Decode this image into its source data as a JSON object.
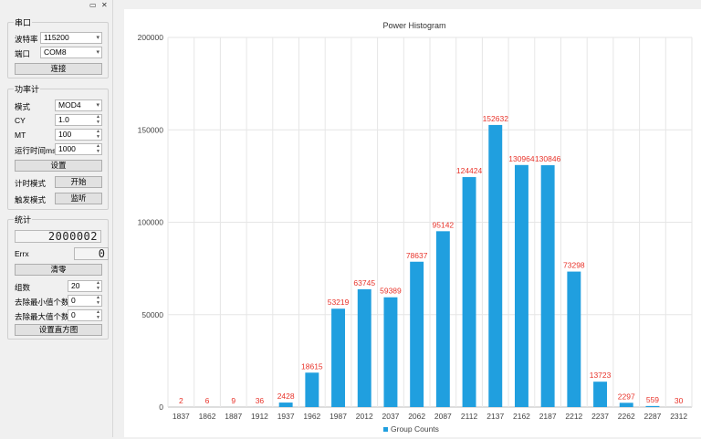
{
  "sidebar": {
    "serial": {
      "title": "串口",
      "baud_label": "波特率",
      "baud_value": "115200",
      "port_label": "端口",
      "port_value": "COM8",
      "connect_label": "连接"
    },
    "power": {
      "title": "功率计",
      "mode_label": "模式",
      "mode_value": "MOD4",
      "cy_label": "CY",
      "cy_value": "1.0",
      "mt_label": "MT",
      "mt_value": "100",
      "runtime_label": "运行时间ms",
      "runtime_value": "1000",
      "set_label": "设置",
      "timer_label": "计时模式",
      "start_label": "开始",
      "trigger_label": "触发模式",
      "listen_label": "监听"
    },
    "stats": {
      "title": "统计",
      "total_display": "2000002",
      "errx_label": "Errx",
      "errx_display": "0",
      "clear_label": "清零",
      "groups_label": "组数",
      "groups_value": "20",
      "rm_min_label": "去除最小值个数",
      "rm_min_value": "0",
      "rm_max_label": "去除最大值个数",
      "rm_max_value": "0",
      "set_hist_label": "设置直方图"
    }
  },
  "chart_data": {
    "type": "bar",
    "title": "Power Histogram",
    "categories": [
      "1837",
      "1862",
      "1887",
      "1912",
      "1937",
      "1962",
      "1987",
      "2012",
      "2037",
      "2062",
      "2087",
      "2112",
      "2137",
      "2162",
      "2187",
      "2212",
      "2237",
      "2262",
      "2287",
      "2312"
    ],
    "series": [
      {
        "name": "Group Counts",
        "color": "#209fdf",
        "values": [
          2,
          6,
          9,
          36,
          2428,
          18615,
          53219,
          63745,
          59389,
          78637,
          95142,
          124424,
          152632,
          130964,
          130846,
          73298,
          13723,
          2297,
          559,
          30
        ]
      }
    ],
    "ylim": [
      0,
      200000
    ],
    "yticks": [
      "0",
      "50000",
      "100000",
      "150000",
      "200000"
    ],
    "label_color": "#e8332a",
    "grid": true,
    "legend_position": "bottom"
  }
}
